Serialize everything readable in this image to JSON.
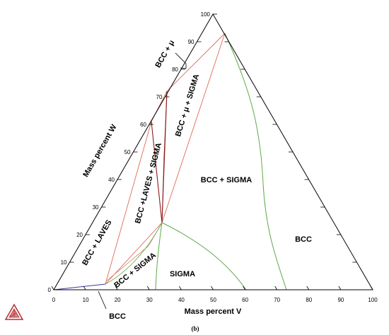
{
  "caption": "(b)",
  "axes": {
    "bottom_title": "Mass percent V",
    "left_title": "Mass percent W",
    "bottom_ticks": [
      "0",
      "10",
      "20",
      "30",
      "40",
      "50",
      "60",
      "70",
      "80",
      "90",
      "100"
    ],
    "left_ticks": [
      "0",
      "10",
      "20",
      "30",
      "40",
      "50",
      "60",
      "70",
      "80",
      "90",
      "100"
    ]
  },
  "regions": {
    "bcc_mu": "BCC + μ",
    "bcc_mu_sigma": "BCC + μ + SIGMA",
    "bcc_laves_sigma": "BCC +LAVES + SIGMA",
    "bcc_sigma_upper": "BCC + SIGMA",
    "bcc_laves": "BCC + LAVES",
    "bcc_sigma_lower": "BCC + SIGMA",
    "sigma": "SIGMA",
    "bcc_right": "BCC",
    "bcc_bottom": "BCC"
  },
  "colors": {
    "frame": "#000000",
    "tie_lines": "#e06a5a",
    "three_phase_edges": "#8b1a1a",
    "sigma_boundary": "#5faa4a",
    "bcc_boundary": "#3a3a9a",
    "logo": "#b03030"
  },
  "logo_icon": "thermo-calc-triangle-logo"
}
